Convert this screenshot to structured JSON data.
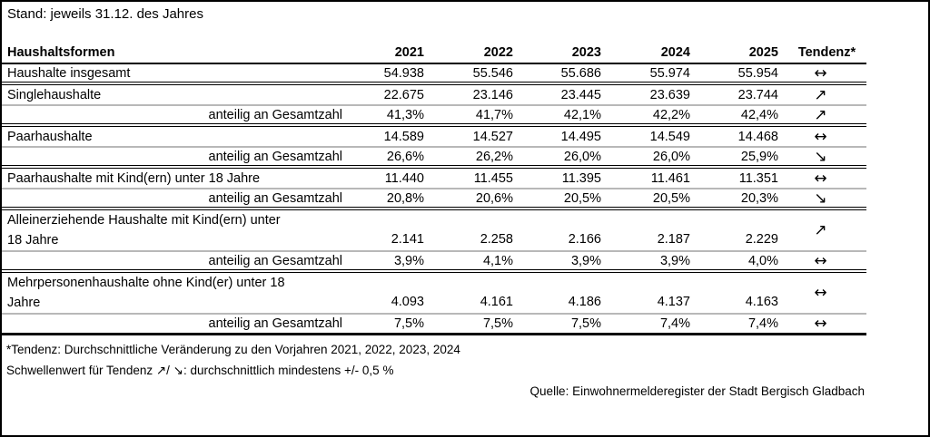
{
  "meta": {
    "stand_note": "Stand: jeweils 31.12. des Jahres"
  },
  "colors": {
    "border_black": "#000000",
    "divider_gray": "#b8b8b8",
    "background": "#ffffff",
    "text": "#000000"
  },
  "table": {
    "header": {
      "label": "Haushaltsformen",
      "years": [
        "2021",
        "2022",
        "2023",
        "2024",
        "2025"
      ],
      "tendenz": "Tendenz*"
    },
    "rows": [
      {
        "label": "Haushalte insgesamt",
        "values": [
          "54.938",
          "55.546",
          "55.686",
          "55.974",
          "55.954"
        ],
        "tendenz": "↔"
      },
      {
        "label": "Singlehaushalte",
        "values": [
          "22.675",
          "23.146",
          "23.445",
          "23.639",
          "23.744"
        ],
        "tendenz": "↗"
      },
      {
        "label": "anteilig an Gesamtzahl",
        "values": [
          "41,3%",
          "41,7%",
          "42,1%",
          "42,2%",
          "42,4%"
        ],
        "tendenz": "↗"
      },
      {
        "label": "Paarhaushalte",
        "values": [
          "14.589",
          "14.527",
          "14.495",
          "14.549",
          "14.468"
        ],
        "tendenz": "↔"
      },
      {
        "label": "anteilig an Gesamtzahl",
        "values": [
          "26,6%",
          "26,2%",
          "26,0%",
          "26,0%",
          "25,9%"
        ],
        "tendenz": "↘"
      },
      {
        "label": "Paarhaushalte mit Kind(ern) unter 18 Jahre",
        "values": [
          "11.440",
          "11.455",
          "11.395",
          "11.461",
          "11.351"
        ],
        "tendenz": "↔"
      },
      {
        "label": "anteilig an Gesamtzahl",
        "values": [
          "20,8%",
          "20,6%",
          "20,5%",
          "20,5%",
          "20,3%"
        ],
        "tendenz": "↘"
      },
      {
        "label_lines": [
          "Alleinerziehende Haushalte mit Kind(ern) unter",
          "18 Jahre"
        ],
        "values": [
          "2.141",
          "2.258",
          "2.166",
          "2.187",
          "2.229"
        ],
        "tendenz": "↗"
      },
      {
        "label": "anteilig an Gesamtzahl",
        "values": [
          "3,9%",
          "4,1%",
          "3,9%",
          "3,9%",
          "4,0%"
        ],
        "tendenz": "↔"
      },
      {
        "label_lines": [
          "Mehrpersonenhaushalte ohne Kind(er) unter 18",
          "Jahre"
        ],
        "values": [
          "4.093",
          "4.161",
          "4.186",
          "4.137",
          "4.163"
        ],
        "tendenz": "↔"
      },
      {
        "label": "anteilig an Gesamtzahl",
        "values": [
          "7,5%",
          "7,5%",
          "7,5%",
          "7,4%",
          "7,4%"
        ],
        "tendenz": "↔"
      }
    ]
  },
  "footnotes": {
    "tendenz_definition": "*Tendenz: Durchschnittliche Veränderung zu den Vorjahren 2021, 2022, 2023, 2024",
    "threshold": "Schwellenwert für Tendenz ↗/ ↘: durchschnittlich mindestens +/- 0,5 %"
  },
  "source": "Quelle: Einwohnermelderegister der Stadt Bergisch Gladbach"
}
